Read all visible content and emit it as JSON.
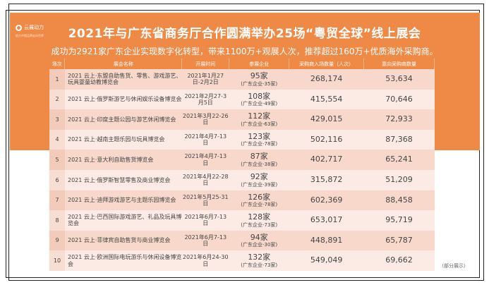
{
  "logo": {
    "name": "云展动力",
    "tagline": "助力中国品牌走向世界"
  },
  "title": "2021年与广东省商务厅合作圆满举办25场“粤贸全球”线上展会",
  "subtitle": "成功为2921家广东企业实现数字化转型，带来1100万+观展人次，推荐超过160万+优质海外采购商。",
  "table": {
    "headers": [
      "场次",
      "展会名称",
      "开展时间",
      "参展企业",
      "采购商入场数量（人次）",
      "意向采购商数量"
    ],
    "rows": [
      {
        "no": "1",
        "name": "2021 云上·东盟自助售货、零售、游戏游艺、玩具婴童幼教博览会",
        "date": "2021年1月27日-2月2日",
        "companies": "95家",
        "gd": "(广东企业-35家)",
        "visitors": "268,174",
        "buyers": "53,634"
      },
      {
        "no": "2",
        "name": "2021 云上·俄罗斯游艺与休闲娱乐设备博览会",
        "date": "2021年2月27-3月5日",
        "companies": "108家",
        "gd": "(广东企业-49家)",
        "visitors": "415,554",
        "buyers": "70,646"
      },
      {
        "no": "3",
        "name": "2021 云上·印度主题公园与游艺休闲博览会",
        "date": "2021年3月22-26日",
        "companies": "112家",
        "gd": "(广东企业-63家)",
        "visitors": "429,015",
        "buyers": "72,933"
      },
      {
        "no": "4",
        "name": "2021 云上·越南主题乐园与玩具博览会",
        "date": "2021年4月7-13日",
        "companies": "123家",
        "gd": "(广东企业-78家)",
        "visitors": "502,116",
        "buyers": "87,368"
      },
      {
        "no": "5",
        "name": "2021 云上·意大利自助售货博览会",
        "date": "2021年4月7-13日",
        "companies": "87家",
        "gd": "(广东企业-38家)",
        "visitors": "402,717",
        "buyers": "65,241"
      },
      {
        "no": "6",
        "name": "2021 云上·俄罗斯智慧零售及商业博览会",
        "date": "2021年4月22-28日",
        "companies": "92家",
        "gd": "(广东企业-39家)",
        "visitors": "315,872",
        "buyers": "51,209"
      },
      {
        "no": "7",
        "name": "2021 云上·迪拜游戏游艺与主题乐园博览会",
        "date": "2021年5月25-31日",
        "companies": "126家",
        "gd": "(广东企业-78家)",
        "visitors": "602,369",
        "buyers": "88,458"
      },
      {
        "no": "8",
        "name": "2021 云上·巴西国际游戏游艺、礼品及玩具博览会",
        "date": "2021年6月7-13日",
        "companies": "128家",
        "gd": "(广东企业-73家)",
        "visitors": "653,017",
        "buyers": "95,719"
      },
      {
        "no": "9",
        "name": "2021 云上·菲律宾自助售货与商业博览会",
        "date": "2021年6月7-13日",
        "companies": "94家",
        "gd": "(广东企业-30家)",
        "visitors": "448,891",
        "buyers": "65,787"
      },
      {
        "no": "10",
        "name": "2021 云上·欧洲国际电玩游乐与休闲设备博览会",
        "date": "2021年6月24-30日",
        "companies": "132家",
        "gd": "(广东企业-73家)",
        "visitors": "549,049",
        "buyers": "69,662"
      }
    ]
  },
  "note": "（部分展示）",
  "colors": {
    "orange": "#ef8a46",
    "row_dark": "#f8d8cb",
    "row_light": "#fcebe5"
  }
}
